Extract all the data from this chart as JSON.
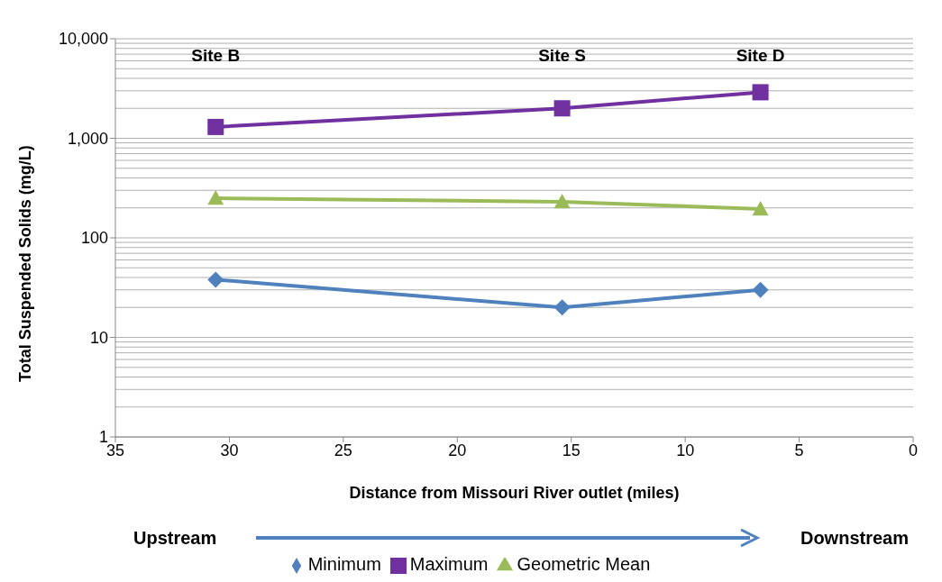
{
  "chart_data": {
    "type": "line",
    "xlabel": "Distance from Missouri River outlet (miles)",
    "ylabel": "Total Suspended Solids (mg/L)",
    "x": [
      30.6,
      15.4,
      6.7
    ],
    "series": [
      {
        "name": "Minimum",
        "color": "#4f81bd",
        "marker": "diamond",
        "values": [
          38,
          20,
          30
        ]
      },
      {
        "name": "Maximum",
        "color": "#7030a0",
        "marker": "square",
        "values": [
          1300,
          2000,
          2900
        ]
      },
      {
        "name": "Geometric Mean",
        "color": "#9bbb59",
        "marker": "triangle",
        "values": [
          250,
          230,
          195
        ]
      }
    ],
    "log": "y",
    "ylim": [
      1,
      10000
    ],
    "yticks": [
      1,
      10,
      100,
      {
        "value": 1000,
        "label": "1,000"
      },
      {
        "value": 10000,
        "label": "10,000"
      }
    ],
    "xlim": [
      35,
      0
    ],
    "xticks": [
      35,
      30,
      25,
      20,
      15,
      10,
      5,
      0
    ],
    "grid": "y",
    "legend": "bottom",
    "annotations": [
      "Site B",
      "Site S",
      "Site D",
      "Upstream",
      "Downstream"
    ]
  }
}
